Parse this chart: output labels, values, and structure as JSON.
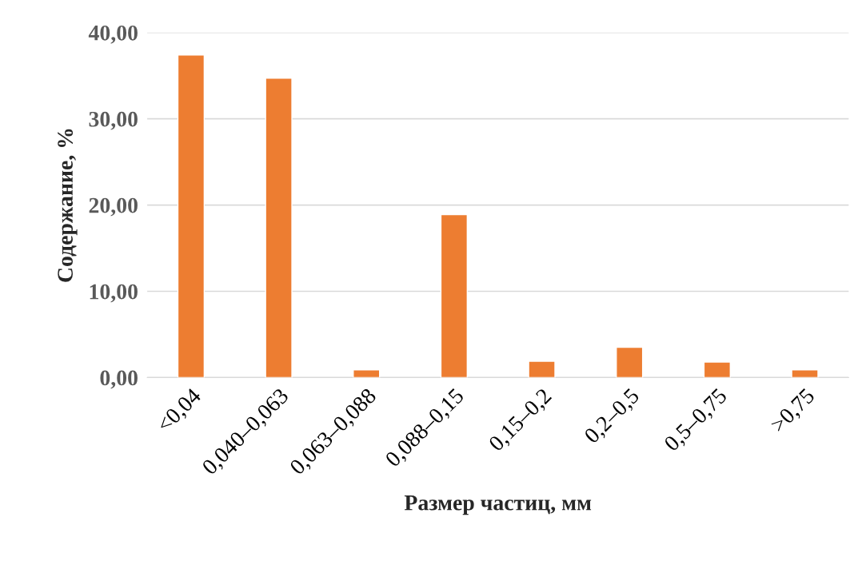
{
  "chart_data": {
    "type": "bar",
    "xlabel": "Размер частиц, мм",
    "ylabel": "Содержание, %",
    "categories": [
      "<0,04",
      "0,040–0,063",
      "0,063–0,088",
      "0,088–0,15",
      "0,15–0,2",
      "0,2–0,5",
      "0,5–0,75",
      ">0,75"
    ],
    "values": [
      37.4,
      34.7,
      0.9,
      18.9,
      1.9,
      3.5,
      1.8,
      0.9
    ],
    "color": "#ed7d31",
    "ylim": [
      0,
      40
    ],
    "yticks": [
      {
        "value": 0,
        "label": "0,00"
      },
      {
        "value": 10,
        "label": "10,00"
      },
      {
        "value": 20,
        "label": "20,00"
      },
      {
        "value": 30,
        "label": "30,00"
      },
      {
        "value": 40,
        "label": "40,00"
      }
    ],
    "grid": "y"
  }
}
